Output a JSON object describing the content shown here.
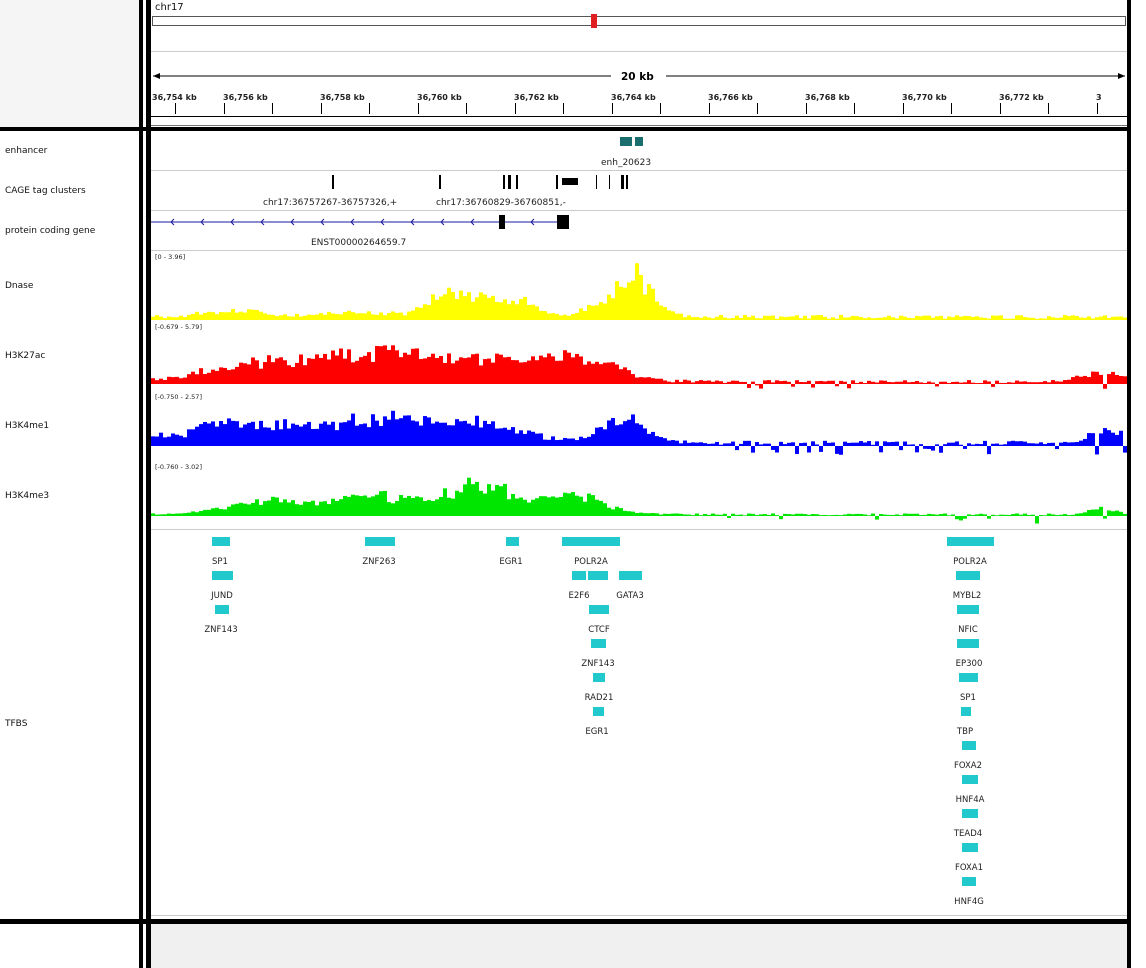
{
  "header": {
    "chromosome": "chr17",
    "span_label": "20 kb",
    "ruler_ticks": [
      "36,754 kb",
      "36,756 kb",
      "36,758 kb",
      "36,760 kb",
      "36,762 kb",
      "36,764 kb",
      "36,766 kb",
      "36,768 kb",
      "36,770 kb",
      "36,772 kb",
      "3"
    ]
  },
  "tracks": {
    "enhancer": {
      "name": "enhancer",
      "feature_label": "enh_20623",
      "color": "#1a6e6e"
    },
    "cage": {
      "name": "CAGE tag clusters",
      "labels": [
        "chr17:36757267-36757326,+",
        "chr17:36760829-36760851,-"
      ]
    },
    "gene": {
      "name": "protein coding gene",
      "transcript": "ENST00000264659.7",
      "strand_color": "#1a1aa0"
    },
    "dnase": {
      "name": "Dnase",
      "range": "[0 - 3.96]",
      "color": "#ffff00"
    },
    "h3k27ac": {
      "name": "H3K27ac",
      "range": "[-0.679 - 5.79]",
      "color": "#ff0000"
    },
    "h3k4me1": {
      "name": "H3K4me1",
      "range": "[-0.750 - 2.57]",
      "color": "#0000ff"
    },
    "h3k4me3": {
      "name": "H3K4me3",
      "range": "[-0.760 - 3.02]",
      "color": "#00e600"
    },
    "tfbs": {
      "name": "TFBS",
      "color": "#21c8cc",
      "labels": [
        "SP1",
        "JUND",
        "ZNF143",
        "ZNF263",
        "EGR1",
        "POLR2A",
        "E2F6",
        "GATA3",
        "CTCF",
        "ZNF143",
        "RAD21",
        "EGR1",
        "POLR2A",
        "MYBL2",
        "NFIC",
        "EP300",
        "SP1",
        "TBP",
        "FOXA2",
        "HNF4A",
        "TEAD4",
        "FOXA1",
        "HNF4G"
      ]
    }
  }
}
